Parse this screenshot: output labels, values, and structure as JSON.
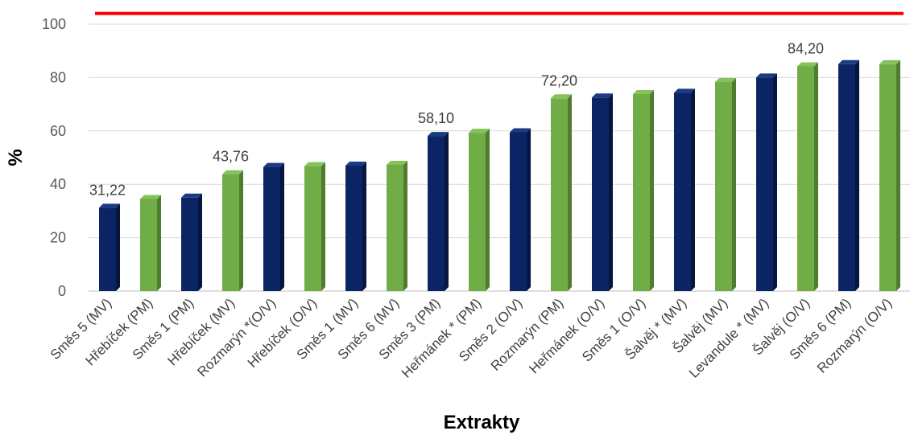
{
  "chart_data": {
    "type": "bar",
    "xlabel": "Extrakty",
    "ylabel": "%",
    "ylim": [
      0,
      100
    ],
    "yticks": [
      0,
      20,
      40,
      60,
      80,
      100
    ],
    "grid": true,
    "reference_line": {
      "value": 104,
      "color": "#ff0000"
    },
    "colors": {
      "dark_blue": "#0b2463",
      "green": "#70ad47"
    },
    "categories": [
      "Směs 5 (MV)",
      "Hřebíček (PM)",
      "Směs 1 (PM)",
      "Hřebíček (MV)",
      "Rozmarýn *(O/V)",
      "Hřebíček (O/V)",
      "Směs 1 (MV)",
      "Směs 6 (MV)",
      "Směs 3 (PM)",
      "Heřmánek * (PM)",
      "Směs 2 (O/V)",
      "Rozmarýn (PM)",
      "Heřmánek (O/V)",
      "Směs 1 (O/V)",
      "Šalvěj * (MV)",
      "Šalvěj (MV)",
      "Levandule * (MV)",
      "Šalvěj (O/V)",
      "Směs 6 (PM)",
      "Rozmarýn (O/V)"
    ],
    "values": [
      31.22,
      34.5,
      35.0,
      43.76,
      46.5,
      46.8,
      47.0,
      47.3,
      58.1,
      59.3,
      59.5,
      72.2,
      72.5,
      73.8,
      74.3,
      78.3,
      80.0,
      84.2,
      85.0,
      85.0
    ],
    "bar_colors": [
      "dark_blue",
      "green",
      "dark_blue",
      "green",
      "dark_blue",
      "green",
      "dark_blue",
      "green",
      "dark_blue",
      "green",
      "dark_blue",
      "green",
      "dark_blue",
      "green",
      "dark_blue",
      "green",
      "dark_blue",
      "green",
      "dark_blue",
      "green"
    ],
    "data_labels": [
      {
        "index": 0,
        "text": "31,22"
      },
      {
        "index": 3,
        "text": "43,76"
      },
      {
        "index": 8,
        "text": "58,10"
      },
      {
        "index": 11,
        "text": "72,20"
      },
      {
        "index": 17,
        "text": "84,20"
      }
    ]
  }
}
